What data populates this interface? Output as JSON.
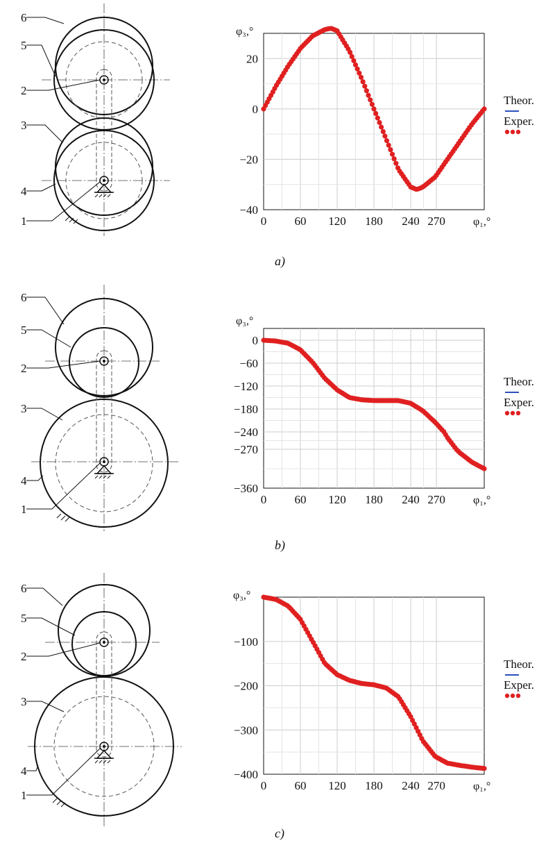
{
  "panels": [
    {
      "caption": "a)",
      "mechanism_labels": [
        "6",
        "5",
        "2",
        "3",
        "4",
        "1"
      ],
      "chart": {
        "ylabel": "φ₃,°",
        "xlabel": "φ₁,°",
        "x_ticks": [
          "0",
          "60",
          "120",
          "180",
          "240",
          "270"
        ],
        "y_ticks": [
          "20",
          "0",
          "−20",
          "−40"
        ],
        "legend": [
          "Theor.",
          "Exper."
        ]
      }
    },
    {
      "caption": "b)",
      "mechanism_labels": [
        "6",
        "5",
        "2",
        "3",
        "4",
        "1"
      ],
      "chart": {
        "ylabel": "φ₃,°",
        "xlabel": "φ₁,°",
        "x_ticks": [
          "0",
          "60",
          "120",
          "180",
          "240",
          "270"
        ],
        "y_ticks": [
          "0",
          "−60",
          "−120",
          "−180",
          "−240",
          "−270",
          "−360"
        ],
        "legend": [
          "Theor.",
          "Exper."
        ]
      }
    },
    {
      "caption": "c)",
      "mechanism_labels": [
        "6",
        "5",
        "2",
        "3",
        "4",
        "1"
      ],
      "chart": {
        "ylabel": "φ₃,°",
        "xlabel": "φ₁,°",
        "x_ticks": [
          "0",
          "60",
          "120",
          "180",
          "240",
          "270"
        ],
        "y_ticks": [
          "−100",
          "−200",
          "−300",
          "−400"
        ],
        "legend": [
          "Theor.",
          "Exper."
        ]
      }
    }
  ],
  "colors": {
    "theor": "#2b4fbf",
    "exper": "#e02020",
    "grid": "#cccccc",
    "ink": "#111111"
  },
  "chart_data": [
    {
      "type": "line",
      "ylabel": "φ₃,°",
      "xlabel": "φ₁,°",
      "xlim": [
        0,
        360
      ],
      "ylim": [
        -40,
        30
      ],
      "series": [
        {
          "name": "Theor.",
          "x": [
            0,
            20,
            40,
            60,
            80,
            100,
            110,
            120,
            140,
            160,
            180,
            200,
            220,
            240,
            250,
            260,
            280,
            300,
            320,
            340,
            360
          ],
          "values": [
            0,
            9,
            17,
            24,
            29,
            31.5,
            32,
            31,
            23,
            12,
            0,
            -12,
            -24,
            -31,
            -32,
            -31,
            -27,
            -20,
            -13,
            -6,
            0
          ]
        },
        {
          "name": "Exper.",
          "x": [
            0,
            20,
            40,
            60,
            80,
            100,
            110,
            120,
            140,
            160,
            180,
            200,
            220,
            240,
            250,
            260,
            280,
            300,
            320,
            340,
            360
          ],
          "values": [
            0,
            9,
            17,
            24,
            29,
            31.5,
            32,
            31,
            23,
            12,
            0,
            -12,
            -24,
            -31,
            -32,
            -31,
            -27,
            -20,
            -13,
            -6,
            0
          ]
        }
      ]
    },
    {
      "type": "line",
      "ylabel": "φ₃,°",
      "xlabel": "φ₁,°",
      "xlim": [
        0,
        360
      ],
      "ylim": [
        -360,
        30
      ],
      "series": [
        {
          "name": "Theor.",
          "x": [
            0,
            20,
            40,
            60,
            80,
            100,
            120,
            140,
            160,
            180,
            200,
            220,
            240,
            260,
            280,
            300,
            320,
            340,
            360
          ],
          "values": [
            0,
            -2,
            -8,
            -25,
            -58,
            -100,
            -130,
            -150,
            -156,
            -158,
            -158,
            -158,
            -165,
            -185,
            -215,
            -250,
            -278,
            -300,
            -315
          ]
        },
        {
          "name": "Exper.",
          "x": [
            0,
            20,
            40,
            60,
            80,
            100,
            120,
            140,
            160,
            180,
            200,
            220,
            240,
            260,
            280,
            300,
            320,
            340,
            360
          ],
          "values": [
            0,
            -2,
            -8,
            -25,
            -58,
            -100,
            -130,
            -150,
            -156,
            -158,
            -158,
            -158,
            -165,
            -185,
            -215,
            -250,
            -278,
            -300,
            -315
          ]
        }
      ]
    },
    {
      "type": "line",
      "ylabel": "φ₃,°",
      "xlabel": "φ₁,°",
      "xlim": [
        0,
        360
      ],
      "ylim": [
        -400,
        0
      ],
      "series": [
        {
          "name": "Theor.",
          "x": [
            0,
            20,
            40,
            60,
            80,
            100,
            120,
            140,
            160,
            180,
            200,
            220,
            240,
            260,
            280,
            300,
            320,
            340,
            360
          ],
          "values": [
            0,
            -5,
            -20,
            -50,
            -100,
            -150,
            -175,
            -188,
            -195,
            -198,
            -205,
            -225,
            -270,
            -325,
            -360,
            -375,
            -380,
            -384,
            -387
          ]
        },
        {
          "name": "Exper.",
          "x": [
            0,
            20,
            40,
            60,
            80,
            100,
            120,
            140,
            160,
            180,
            200,
            220,
            240,
            260,
            280,
            300,
            320,
            340,
            360
          ],
          "values": [
            0,
            -5,
            -20,
            -50,
            -100,
            -150,
            -175,
            -188,
            -195,
            -198,
            -205,
            -225,
            -270,
            -325,
            -360,
            -375,
            -380,
            -384,
            -387
          ]
        }
      ]
    }
  ]
}
